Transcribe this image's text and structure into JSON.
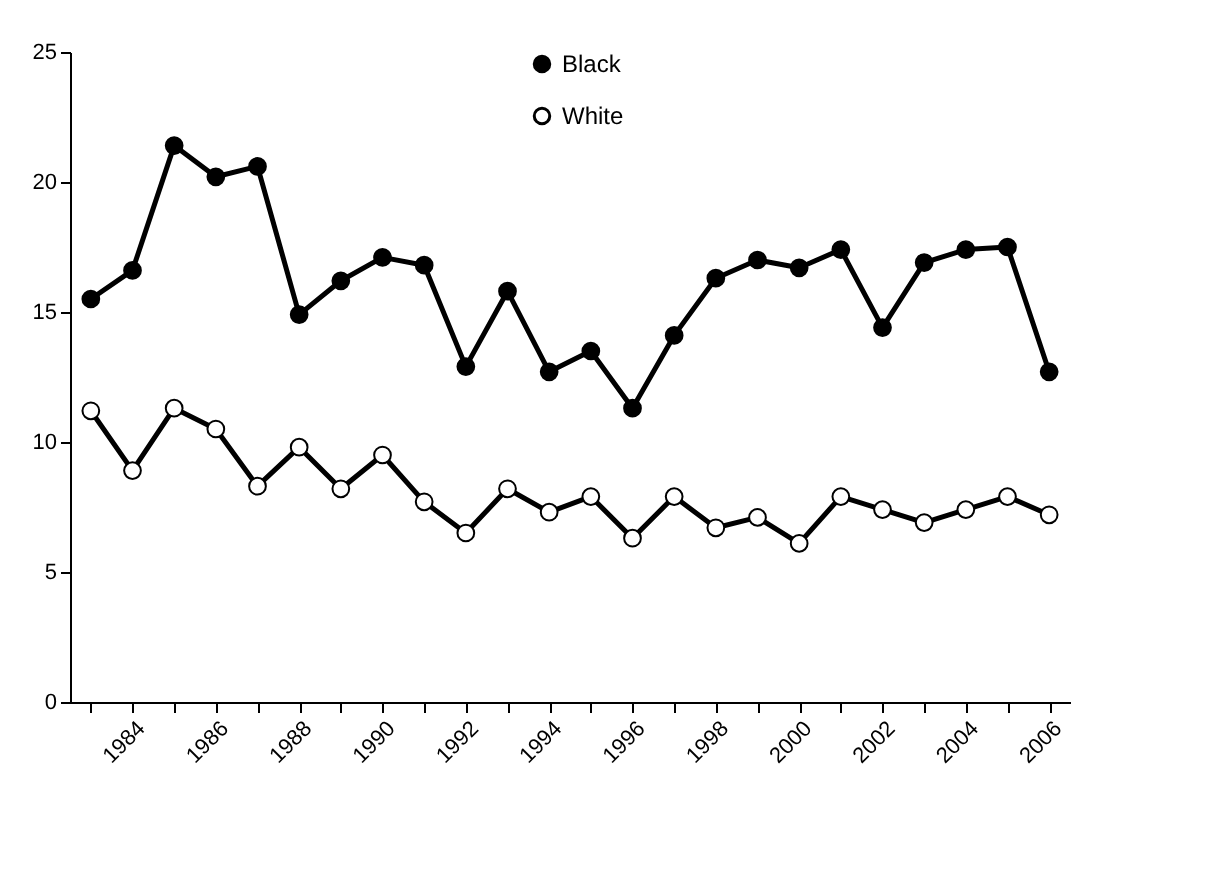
{
  "chart_data": {
    "type": "line",
    "categories": [
      null,
      "1984",
      null,
      "1986",
      null,
      "1988",
      null,
      "1990",
      null,
      "1992",
      null,
      "1994",
      null,
      "1996",
      null,
      "1998",
      null,
      "2000",
      null,
      "2002",
      null,
      "2004",
      null,
      "2006"
    ],
    "series": [
      {
        "name": "Black",
        "color": "#000000",
        "values": [
          15.5,
          16.6,
          21.4,
          20.2,
          20.6,
          14.9,
          16.2,
          17.1,
          16.8,
          12.9,
          15.8,
          12.7,
          13.5,
          11.3,
          14.1,
          16.3,
          17.0,
          16.7,
          17.4,
          14.4,
          16.9,
          17.4,
          17.5,
          12.7
        ]
      },
      {
        "name": "White",
        "color": "#000000",
        "values": [
          11.2,
          8.9,
          11.3,
          10.5,
          8.3,
          9.8,
          8.2,
          9.5,
          7.7,
          6.5,
          8.2,
          7.3,
          7.9,
          6.3,
          7.9,
          6.7,
          7.1,
          6.1,
          7.9,
          7.4,
          6.9,
          7.4,
          7.9,
          7.2
        ]
      }
    ],
    "ylim": [
      0,
      25
    ],
    "yticks": [
      0,
      5,
      10,
      15,
      20,
      25
    ],
    "grid": false,
    "legend": "top",
    "marker": "circle",
    "line_style": "solid"
  }
}
